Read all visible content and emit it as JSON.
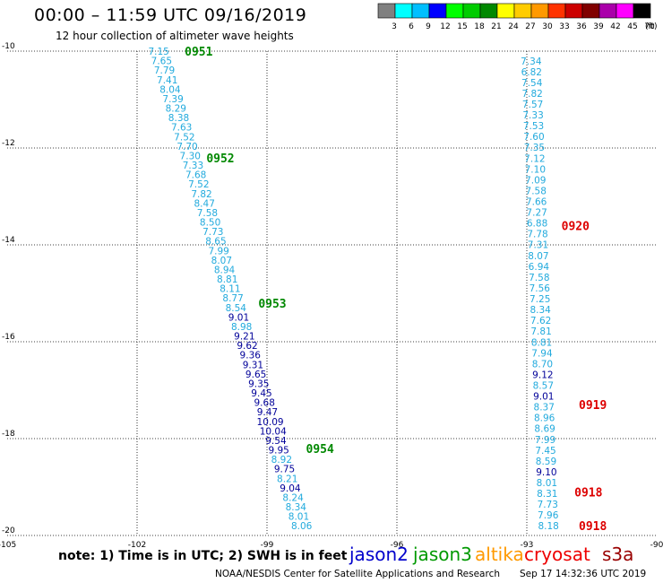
{
  "title": "00:00 – 11:59 UTC 09/16/2019",
  "subtitle": "12 hour collection of altimeter wave heights",
  "note": "note: 1) Time is in UTC; 2) SWH is in feet",
  "footer": "NOAA/NESDIS Center for Satellite Applications and Research",
  "timestamp": "Sep 17 14:32:36 UTC 2019",
  "colorbar": {
    "labels": [
      "3",
      "6",
      "9",
      "12",
      "15",
      "18",
      "21",
      "24",
      "27",
      "30",
      "33",
      "36",
      "39",
      "42",
      "45",
      "70"
    ],
    "unit": "(ft)",
    "colors": [
      "#808080",
      "#00ffff",
      "#00bfff",
      "#0000ff",
      "#00ff00",
      "#00cc00",
      "#008800",
      "#ffff00",
      "#ffcc00",
      "#ff9900",
      "#ff3300",
      "#cc0000",
      "#800000",
      "#aa00aa",
      "#ff00ff",
      "#000000"
    ]
  },
  "satellites": [
    {
      "name": "jason2",
      "color": "#0000cc"
    },
    {
      "name": "jason3",
      "color": "#009900"
    },
    {
      "name": "altika",
      "color": "#ff9900"
    },
    {
      "name": "cryosat",
      "color": "#ee0000"
    },
    {
      "name": "s3a",
      "color": "#990000"
    }
  ],
  "chart_data": {
    "type": "scatter",
    "xlim": [
      -105,
      -90
    ],
    "ylim": [
      -20,
      -10
    ],
    "x_ticks": [
      "-105",
      "-102",
      "-99",
      "-96",
      "-93",
      "-90"
    ],
    "y_ticks": [
      "-10",
      "-12",
      "-14",
      "-16",
      "-18",
      "-20"
    ],
    "grid": true,
    "colors": {
      "cyan": "#22aadd",
      "navy": "#000099",
      "green": "#008800",
      "red": "#dd0000"
    },
    "tracks": [
      {
        "start": [
          -101.5,
          -10.0
        ],
        "end": [
          -98.2,
          -19.8
        ],
        "values": [
          "7.15",
          "7.65",
          "7.79",
          "7.41",
          "8.04",
          "7.39",
          "8.29",
          "8.38",
          "7.63",
          "7.52",
          "7.70",
          "7.30",
          "7.33",
          "7.68",
          "7.52",
          "7.82",
          "8.47",
          "7.58",
          "8.50",
          "7.73",
          "8.65",
          "7.99",
          "8.07",
          "8.94",
          "8.81",
          "8.11",
          "8.77",
          "8.54",
          "9.01",
          "8.98",
          "9.21",
          "9.62",
          "9.36",
          "9.31",
          "9.65",
          "9.35",
          "9.45",
          "9.68",
          "9.47",
          "10.09",
          "10.04",
          "9.54",
          "9.95",
          "8.92",
          "9.75",
          "8.21",
          "9.04",
          "8.24",
          "8.34",
          "8.01",
          "8.06"
        ],
        "colors": [
          "cyan",
          "cyan",
          "cyan",
          "cyan",
          "cyan",
          "cyan",
          "cyan",
          "cyan",
          "cyan",
          "cyan",
          "cyan",
          "cyan",
          "cyan",
          "cyan",
          "cyan",
          "cyan",
          "cyan",
          "cyan",
          "cyan",
          "cyan",
          "cyan",
          "cyan",
          "cyan",
          "cyan",
          "cyan",
          "cyan",
          "cyan",
          "cyan",
          "navy",
          "cyan",
          "navy",
          "navy",
          "navy",
          "navy",
          "navy",
          "navy",
          "navy",
          "navy",
          "navy",
          "navy",
          "navy",
          "navy",
          "navy",
          "cyan",
          "navy",
          "cyan",
          "navy",
          "cyan",
          "cyan",
          "cyan",
          "cyan"
        ],
        "time_labels": [
          {
            "text": "0951",
            "lat": -10.0,
            "lon": -100.9,
            "color": "green"
          },
          {
            "text": "0952",
            "lat": -12.2,
            "lon": -100.4,
            "color": "green"
          },
          {
            "text": "0953",
            "lat": -15.2,
            "lon": -99.2,
            "color": "green"
          },
          {
            "text": "0954",
            "lat": -18.2,
            "lon": -98.1,
            "color": "green"
          }
        ]
      },
      {
        "start": [
          -92.9,
          -10.2
        ],
        "end": [
          -92.5,
          -19.8
        ],
        "values": [
          "7.34",
          "6.82",
          "7.54",
          "7.82",
          "7.57",
          "7.33",
          "7.53",
          "7.60",
          "7.35",
          "7.12",
          "7.10",
          "7.09",
          "7.58",
          "7.66",
          "7.27",
          "6.88",
          "7.78",
          "7.31",
          "8.07",
          "6.94",
          "7.58",
          "7.56",
          "7.25",
          "8.34",
          "7.62",
          "7.81",
          "8.81",
          "7.94",
          "8.70",
          "9.12",
          "8.57",
          "9.01",
          "8.37",
          "8.96",
          "8.69",
          "7.99",
          "7.45",
          "8.59",
          "9.10",
          "8.01",
          "8.31",
          "7.73",
          "7.96",
          "8.18"
        ],
        "colors": [
          "cyan",
          "cyan",
          "cyan",
          "cyan",
          "cyan",
          "cyan",
          "cyan",
          "cyan",
          "cyan",
          "cyan",
          "cyan",
          "cyan",
          "cyan",
          "cyan",
          "cyan",
          "cyan",
          "cyan",
          "cyan",
          "cyan",
          "cyan",
          "cyan",
          "cyan",
          "cyan",
          "cyan",
          "cyan",
          "cyan",
          "cyan",
          "cyan",
          "cyan",
          "navy",
          "cyan",
          "navy",
          "cyan",
          "cyan",
          "cyan",
          "cyan",
          "cyan",
          "cyan",
          "navy",
          "cyan",
          "cyan",
          "cyan",
          "cyan",
          "cyan"
        ],
        "time_labels": [
          {
            "text": "0920",
            "lat": -13.6,
            "lon": -92.2,
            "color": "red"
          },
          {
            "text": "0919",
            "lat": -17.3,
            "lon": -91.8,
            "color": "red"
          },
          {
            "text": "0918",
            "lat": -19.1,
            "lon": -91.9,
            "color": "red"
          },
          {
            "text": "0918",
            "lat": -19.8,
            "lon": -91.8,
            "color": "red"
          }
        ]
      }
    ]
  }
}
